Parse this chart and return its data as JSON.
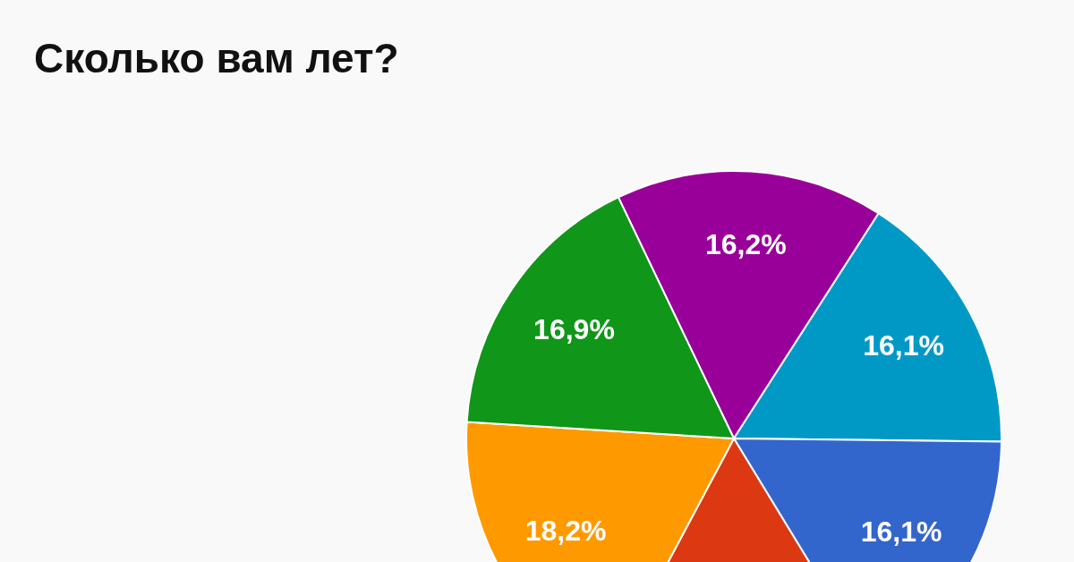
{
  "chart_data": {
    "type": "pie",
    "title": "Сколько вам лет?",
    "categories": [
      null,
      null,
      null,
      null,
      null,
      null
    ],
    "values": [
      16.2,
      16.1,
      16.1,
      16.5,
      18.2,
      16.9
    ],
    "colors": [
      "#990099",
      "#0099c6",
      "#3366cc",
      "#dc3912",
      "#ff9900",
      "#109618"
    ],
    "value_labels": [
      "16,2%",
      "16,1%",
      "16,1%",
      null,
      "18,2%",
      "16,9%"
    ],
    "legend": false
  }
}
